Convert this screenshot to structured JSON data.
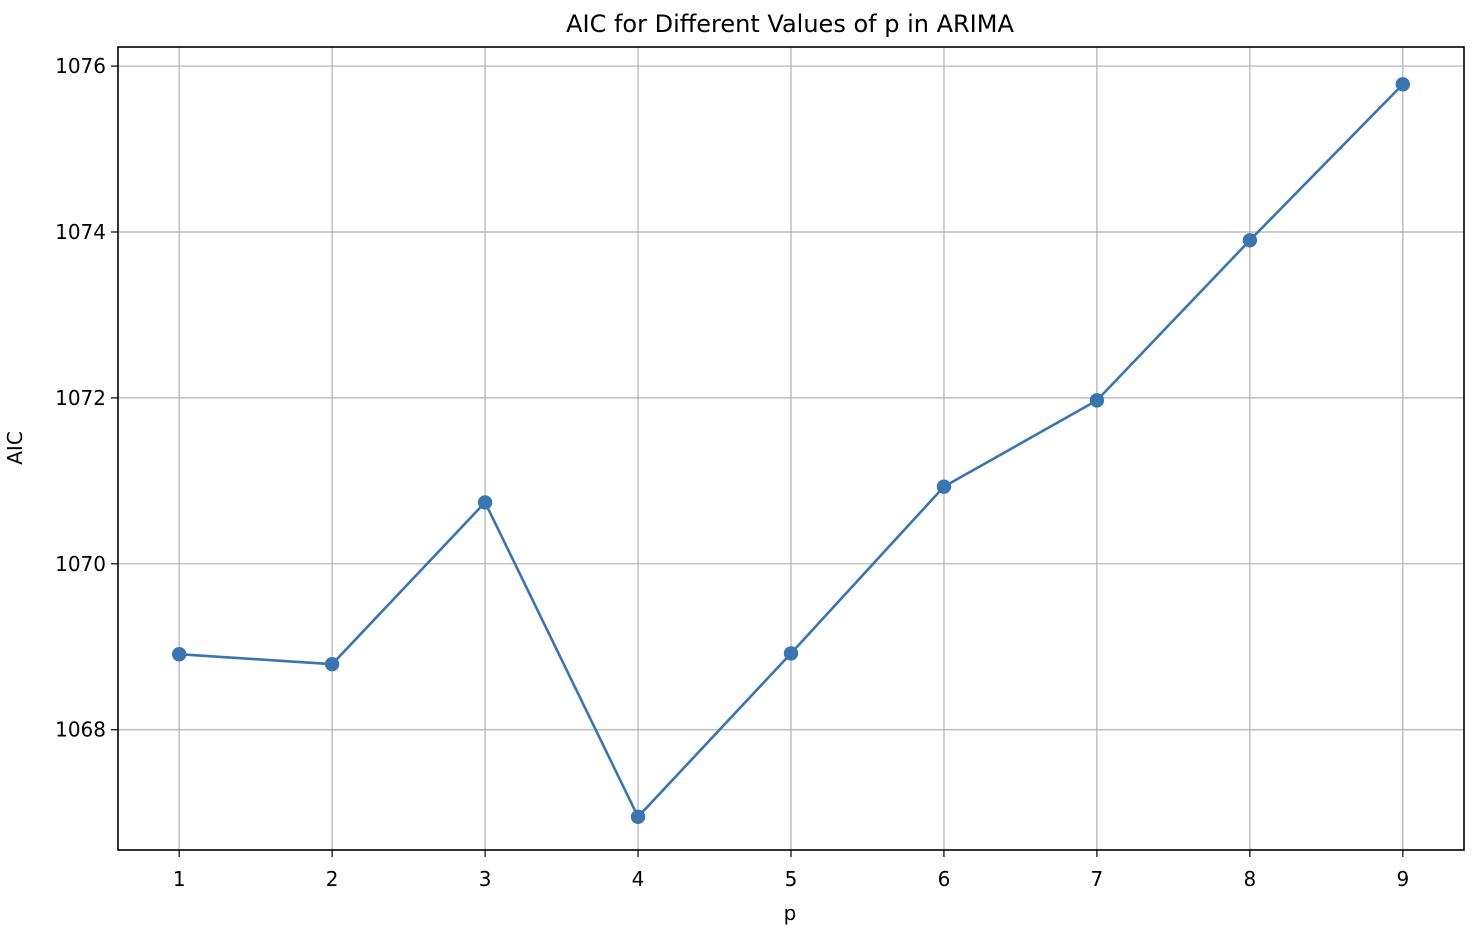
{
  "chart_data": {
    "type": "line",
    "title": "AIC for Different Values of p in ARIMA",
    "xlabel": "p",
    "ylabel": "AIC",
    "x": [
      1,
      2,
      3,
      4,
      5,
      6,
      7,
      8,
      9
    ],
    "x_tick_labels": [
      "1",
      "2",
      "3",
      "4",
      "5",
      "6",
      "7",
      "8",
      "9"
    ],
    "y_ticks": [
      1068,
      1070,
      1072,
      1074,
      1076
    ],
    "y_tick_labels": [
      "1068",
      "1070",
      "1072",
      "1074",
      "1076"
    ],
    "series": [
      {
        "values": [
          1068.91,
          1068.79,
          1070.74,
          1066.95,
          1068.92,
          1070.93,
          1071.97,
          1073.9,
          1075.78
        ],
        "color": "#3a75b0",
        "marker": "circle"
      }
    ],
    "xlim": [
      0.6,
      9.4
    ],
    "ylim": [
      1066.55,
      1076.23
    ],
    "grid": true,
    "legend": false
  }
}
